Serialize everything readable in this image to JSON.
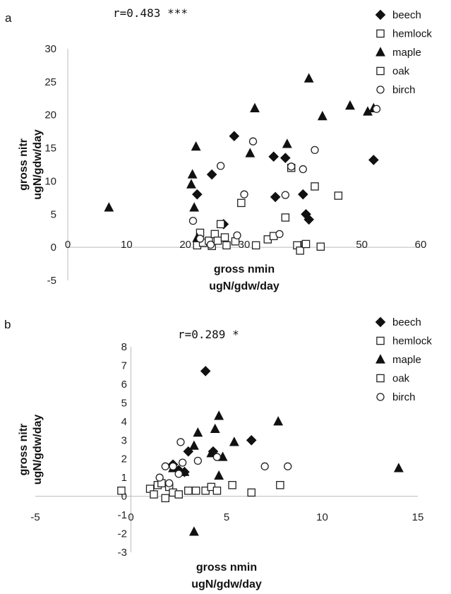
{
  "chart_data": [
    {
      "type": "scatter",
      "panel": "a",
      "annotation": "r=0.483 ***",
      "xlabel": [
        "gross nmin",
        "ugN/gdw/day"
      ],
      "ylabel": [
        "gross nitr",
        "ugN/gdw/day"
      ],
      "xlim": [
        0,
        60
      ],
      "ylim": [
        -5,
        30
      ],
      "xticks": [
        "0",
        "10",
        "20",
        "30",
        "40",
        "50",
        "60"
      ],
      "yticks": [
        "30",
        "25",
        "20",
        "15",
        "10",
        "5",
        "0",
        "-5"
      ],
      "legend_position": "top-right",
      "series": [
        {
          "name": "beech",
          "marker": "diamond",
          "x": [
            22,
            24.5,
            26.5,
            28.3,
            35,
            35.3,
            37,
            40,
            40.5,
            41,
            52
          ],
          "y": [
            8,
            11,
            3.5,
            16.8,
            13.7,
            7.6,
            13.5,
            8,
            5,
            4.2,
            13.2
          ]
        },
        {
          "name": "hemlock",
          "marker": "square",
          "x": [
            22,
            22.5,
            23,
            24,
            24.5,
            25,
            25.5,
            26,
            26.7,
            27,
            28.5,
            29.5,
            32,
            34,
            35,
            37,
            38,
            39,
            39.5,
            40.5,
            42,
            43,
            46
          ],
          "y": [
            0.3,
            2.2,
            0.7,
            1,
            0.2,
            2,
            1,
            3.5,
            1.5,
            0.3,
            0.9,
            6.7,
            0.3,
            1.2,
            1.7,
            4.5,
            12,
            0.3,
            -0.5,
            0.5,
            9.2,
            0.1,
            7.8
          ]
        },
        {
          "name": "maple",
          "marker": "triangle",
          "x": [
            7,
            21,
            21.2,
            21.5,
            21.8,
            22,
            31,
            31.8,
            37.3,
            41,
            43.3,
            48,
            51,
            52
          ],
          "y": [
            6,
            9.5,
            11,
            6,
            15.2,
            1.4,
            14.2,
            21,
            15.6,
            25.5,
            19.8,
            21.4,
            20.5,
            21
          ],
          "note": "last maple point overlaps birch near (52, 21)"
        },
        {
          "name": "oak",
          "marker": "square",
          "x": [],
          "y": []
        },
        {
          "name": "birch",
          "marker": "circle",
          "x": [
            21.3,
            22.5,
            24.3,
            26,
            28.8,
            30,
            31.5,
            36,
            37,
            38,
            40,
            42,
            52.5
          ],
          "y": [
            4,
            1.3,
            0.4,
            12.3,
            1.8,
            8,
            16,
            2,
            7.9,
            12.2,
            11.8,
            14.7,
            20.9
          ]
        }
      ]
    },
    {
      "type": "scatter",
      "panel": "b",
      "annotation": "r=0.289 *",
      "xlabel": [
        "gross nmin",
        "ugN/gdw/day"
      ],
      "ylabel": [
        "gross nitr",
        "ugN/gdw/day"
      ],
      "xlim": [
        -5,
        15
      ],
      "ylim": [
        -3,
        8
      ],
      "xticks": [
        "-5",
        "0",
        "5",
        "10",
        "15"
      ],
      "yticks": [
        "8",
        "7",
        "6",
        "5",
        "4",
        "3",
        "2",
        "1",
        "0",
        "-1",
        "-2",
        "-3"
      ],
      "legend_position": "top-right",
      "series": [
        {
          "name": "beech",
          "marker": "diamond",
          "x": [
            2.2,
            2.5,
            2.8,
            3,
            3.9,
            4.3,
            6.3
          ],
          "y": [
            1.7,
            1.4,
            1.3,
            2.4,
            6.7,
            2.4,
            3
          ]
        },
        {
          "name": "hemlock",
          "marker": "square",
          "x": [
            -0.5,
            1,
            1.2,
            1.4,
            1.6,
            1.8,
            2,
            2.2,
            2.5,
            3,
            3.4,
            3.9,
            4.2,
            4.5,
            5.3,
            6.3,
            7.8
          ],
          "y": [
            0.3,
            0.4,
            0.1,
            0.6,
            0.7,
            -0.1,
            0.5,
            0.2,
            0.1,
            0.3,
            0.3,
            0.3,
            0.5,
            0.3,
            0.6,
            0.2,
            0.6
          ]
        },
        {
          "name": "maple",
          "marker": "triangle",
          "x": [
            2.2,
            2.8,
            3.3,
            3.5,
            4.2,
            4.4,
            4.6,
            4.6,
            4.8,
            5.4,
            7.7,
            14,
            3.3
          ],
          "y": [
            1.5,
            1.3,
            2.7,
            3.4,
            2.3,
            3.6,
            4.3,
            1.1,
            2.1,
            2.9,
            4,
            1.5,
            -1.9
          ]
        },
        {
          "name": "oak",
          "marker": "square",
          "x": [],
          "y": []
        },
        {
          "name": "birch",
          "marker": "circle",
          "x": [
            1.5,
            1.8,
            2,
            2.2,
            2.5,
            2.6,
            2.7,
            3.5,
            4.5,
            7,
            8.2
          ],
          "y": [
            1,
            1.6,
            0.7,
            1.6,
            1.2,
            2.9,
            1.8,
            1.9,
            2.1,
            1.6,
            1.6
          ]
        }
      ]
    }
  ]
}
